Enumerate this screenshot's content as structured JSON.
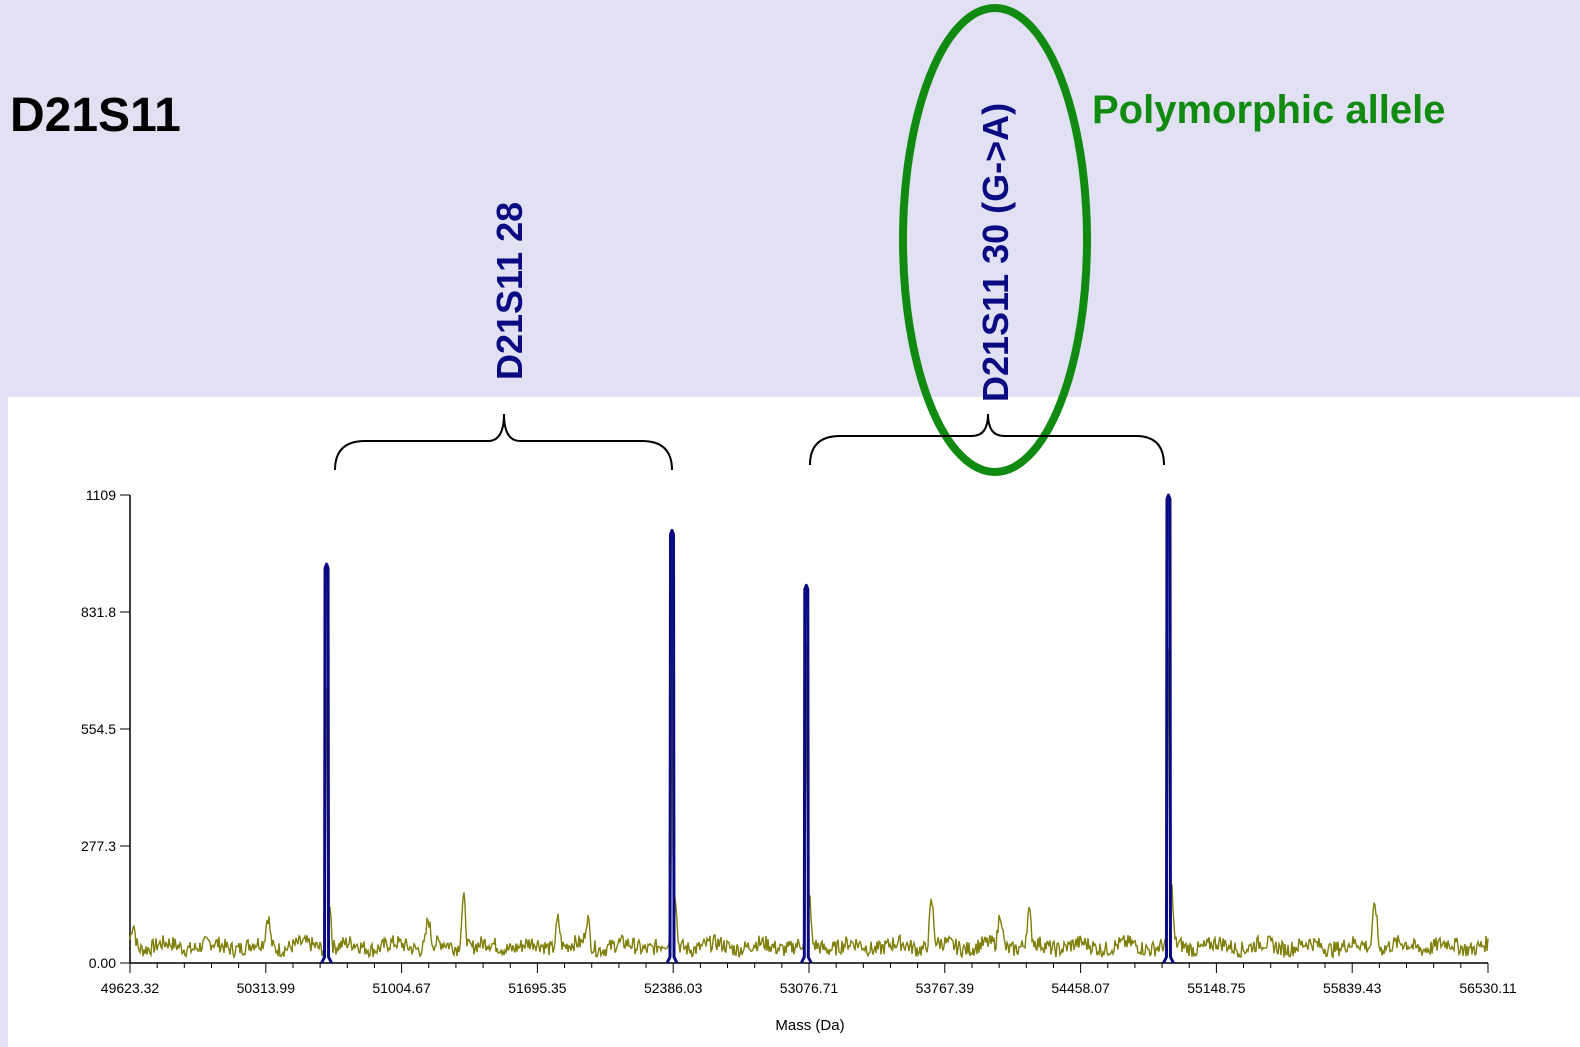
{
  "heading": "D21S11",
  "annotation": "Polymorphic allele",
  "allele_labels": {
    "left": "D21S11 28",
    "right": "D21S11 30 (G->A)"
  },
  "colors": {
    "background": "#e1e1f3",
    "peaks": "#0a0a82",
    "spectrum": "#7f7f0a",
    "highlight": "#118a11"
  },
  "chart_data": {
    "type": "line",
    "xlabel": "Mass (Da)",
    "ylabel": "",
    "xlim": [
      49623.32,
      56530.11
    ],
    "ylim": [
      0,
      1109
    ],
    "x_ticks": [
      "49623.32",
      "50313.99",
      "51004.67",
      "51695.35",
      "52386.03",
      "53076.71",
      "53767.39",
      "54458.07",
      "55148.75",
      "55839.43",
      "56530.11"
    ],
    "y_ticks": [
      "0.00",
      "277.3",
      "554.5",
      "831.8",
      "1109"
    ],
    "grid": false,
    "series": [
      {
        "role": "called-peaks",
        "peaks": [
          {
            "x": 50623,
            "y": 945
          },
          {
            "x": 52380,
            "y": 1025
          },
          {
            "x": 53063,
            "y": 895
          },
          {
            "x": 54905,
            "y": 1109
          }
        ]
      },
      {
        "role": "raw-spectrum",
        "noise_baseline": 40,
        "bumps": [
          {
            "x": 49640,
            "y": 95
          },
          {
            "x": 50325,
            "y": 110
          },
          {
            "x": 51140,
            "y": 105
          },
          {
            "x": 51320,
            "y": 160
          },
          {
            "x": 51800,
            "y": 110
          },
          {
            "x": 51950,
            "y": 105
          },
          {
            "x": 53700,
            "y": 145
          },
          {
            "x": 54050,
            "y": 120
          },
          {
            "x": 54195,
            "y": 115
          },
          {
            "x": 55955,
            "y": 150
          }
        ]
      }
    ]
  }
}
